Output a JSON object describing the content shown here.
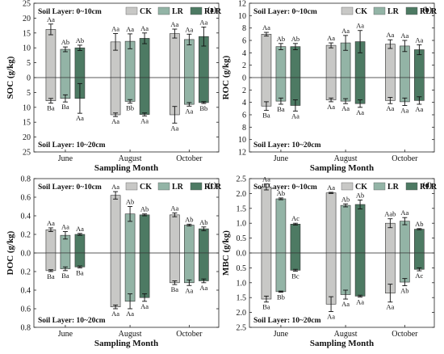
{
  "legend": {
    "items": [
      {
        "name": "CK",
        "color": "#c8c8c6"
      },
      {
        "name": "LR",
        "color": "#93b4a6"
      },
      {
        "name": "RLR",
        "color": "#4d7a63"
      }
    ]
  },
  "chart_data": [
    {
      "type": "bar",
      "panel_label": "(a)",
      "title": "",
      "ylabel": "SOC (g/kg)",
      "xlabel": "Sampling Month",
      "top_layer_label": "Soil Layer: 0~10cm",
      "bottom_layer_label": "Soil Layer: 10~20cm",
      "categories": [
        "June",
        "August",
        "October"
      ],
      "ylim_top": 25,
      "ylim_bottom": 25,
      "yticks_top": [
        "25",
        "20",
        "15",
        "10",
        "5",
        "0"
      ],
      "yticks_bottom": [
        "5",
        "10",
        "15",
        "20",
        "25"
      ],
      "ytick_values_top": [
        25,
        20,
        15,
        10,
        5,
        0
      ],
      "ytick_values_bottom": [
        5,
        10,
        15,
        20,
        25
      ],
      "series": [
        {
          "name": "CK",
          "top": [
            16.2,
            12.0,
            14.8
          ],
          "top_err": [
            1.8,
            2.8,
            1.5
          ],
          "top_labels": [
            "Aa",
            "Aa",
            "Aa"
          ],
          "bottom": [
            7.8,
            12.5,
            12.5
          ],
          "bottom_err": [
            0.8,
            0.6,
            2.8
          ],
          "bottom_labels": [
            "Ba",
            "Aa",
            "Aa"
          ]
        },
        {
          "name": "LR",
          "top": [
            9.5,
            12.2,
            12.8
          ],
          "top_err": [
            0.8,
            2.5,
            1.8
          ],
          "top_labels": [
            "Ab",
            "Aa",
            "Aa"
          ],
          "bottom": [
            7.0,
            8.0,
            9.0
          ],
          "bottom_err": [
            1.2,
            0.6,
            0.6
          ],
          "bottom_labels": [
            "Ba",
            "Bb",
            "Aa"
          ]
        },
        {
          "name": "RLR",
          "top": [
            10.0,
            13.2,
            13.8
          ],
          "top_err": [
            0.9,
            1.8,
            3.2
          ],
          "top_labels": [
            "Ab",
            "Aa",
            "Aa"
          ],
          "bottom": [
            7.0,
            12.4,
            8.4
          ],
          "bottom_err": [
            5.0,
            0.5,
            0.3
          ],
          "bottom_labels": [
            "Aa",
            "Aa",
            "Bb"
          ]
        }
      ]
    },
    {
      "type": "bar",
      "panel_label": "(b)",
      "title": "",
      "ylabel": "ROC (g/kg)",
      "xlabel": "Sampling Month",
      "top_layer_label": "Soil Layer: 0~10cm",
      "bottom_layer_label": "Soil Layer: 10~20cm",
      "categories": [
        "June",
        "August",
        "October"
      ],
      "ylim_top": 12,
      "ylim_bottom": 12,
      "yticks_top": [
        "12",
        "10",
        "8",
        "6",
        "4",
        "2",
        "0"
      ],
      "yticks_bottom": [
        "2",
        "4",
        "6",
        "8",
        "10",
        "12"
      ],
      "ytick_values_top": [
        12,
        10,
        8,
        6,
        4,
        2,
        0
      ],
      "ytick_values_bottom": [
        2,
        4,
        6,
        8,
        10,
        12
      ],
      "series": [
        {
          "name": "CK",
          "top": [
            7.0,
            5.2,
            5.4
          ],
          "top_err": [
            0.3,
            0.4,
            0.7
          ],
          "top_labels": [
            "Aa",
            "Aa",
            "Aa"
          ],
          "bottom": [
            4.6,
            3.6,
            3.7
          ],
          "bottom_err": [
            0.7,
            0.3,
            0.5
          ],
          "bottom_labels": [
            "Ba",
            "Aa",
            "Aa"
          ]
        },
        {
          "name": "LR",
          "top": [
            5.0,
            5.6,
            5.1
          ],
          "top_err": [
            0.5,
            1.2,
            0.9
          ],
          "top_labels": [
            "Ab",
            "Aa",
            "Aa"
          ],
          "bottom": [
            3.8,
            3.8,
            3.9
          ],
          "bottom_err": [
            0.5,
            0.4,
            0.6
          ],
          "bottom_labels": [
            "Ba",
            "Aa",
            "Aa"
          ]
        },
        {
          "name": "RLR",
          "top": [
            5.0,
            5.8,
            4.5
          ],
          "top_err": [
            0.5,
            1.8,
            0.8
          ],
          "top_labels": [
            "Ab",
            "Aa",
            "Aa"
          ],
          "bottom": [
            4.5,
            4.2,
            3.7
          ],
          "bottom_err": [
            0.9,
            0.6,
            0.6
          ],
          "bottom_labels": [
            "Aa",
            "Aa",
            "Aa"
          ]
        }
      ]
    },
    {
      "type": "bar",
      "panel_label": "(c)",
      "title": "",
      "ylabel": "DOC (g/kg)",
      "xlabel": "Sampling Month",
      "top_layer_label": "Soil Layer: 0~10cm",
      "bottom_layer_label": "Soil Layer: 10~20cm",
      "categories": [
        "June",
        "August",
        "October"
      ],
      "ylim_top": 0.8,
      "ylim_bottom": 0.8,
      "yticks_top": [
        "0.8",
        "0.6",
        "0.4",
        "0.2",
        "0.0"
      ],
      "yticks_bottom": [
        "0.2",
        "0.4",
        "0.6",
        "0.8"
      ],
      "ytick_values_top": [
        0.8,
        0.6,
        0.4,
        0.2,
        0
      ],
      "ytick_values_bottom": [
        0.2,
        0.4,
        0.6,
        0.8
      ],
      "series": [
        {
          "name": "CK",
          "top": [
            0.25,
            0.62,
            0.41
          ],
          "top_err": [
            0.02,
            0.04,
            0.02
          ],
          "top_labels": [
            "Aa",
            "Aa",
            "Aa"
          ],
          "bottom": [
            0.19,
            0.58,
            0.32
          ],
          "bottom_err": [
            0.01,
            0.02,
            0.02
          ],
          "bottom_labels": [
            "Ba",
            "Aa",
            "Ba"
          ]
        },
        {
          "name": "LR",
          "top": [
            0.19,
            0.42,
            0.3
          ],
          "top_err": [
            0.04,
            0.08,
            0.01
          ],
          "top_labels": [
            "Aa",
            "Ab",
            "Ab"
          ],
          "bottom": [
            0.17,
            0.52,
            0.32
          ],
          "bottom_err": [
            0.02,
            0.08,
            0.03
          ],
          "bottom_labels": [
            "Ba",
            "Aa",
            "Aa"
          ]
        },
        {
          "name": "RLR",
          "top": [
            0.2,
            0.41,
            0.26
          ],
          "top_err": [
            0.01,
            0.01,
            0.02
          ],
          "top_labels": [
            "Aa",
            "Ab",
            "Ab"
          ],
          "bottom": [
            0.15,
            0.48,
            0.3
          ],
          "bottom_err": [
            0.01,
            0.04,
            0.02
          ],
          "bottom_labels": [
            "Ba",
            "Aa",
            "Aa"
          ]
        }
      ]
    },
    {
      "type": "bar",
      "panel_label": "(d)",
      "title": "",
      "ylabel": "MBC (g/kg)",
      "xlabel": "Sampling Month",
      "top_layer_label": "Soil Layer: 0~10cm",
      "bottom_layer_label": "Soil Layer: 10~20cm",
      "categories": [
        "June",
        "August",
        "October"
      ],
      "ylim_top": 2.5,
      "ylim_bottom": 2.5,
      "yticks_top": [
        "2.5",
        "2.0",
        "1.5",
        "1.0",
        "0.5",
        "0.0"
      ],
      "yticks_bottom": [
        "0.5",
        "1.0",
        "1.5",
        "2.0",
        "2.5"
      ],
      "ytick_values_top": [
        2.5,
        2.0,
        1.5,
        1.0,
        0.5,
        0
      ],
      "ytick_values_bottom": [
        0.5,
        1.0,
        1.5,
        2.0,
        2.5
      ],
      "series": [
        {
          "name": "CK",
          "top": [
            2.22,
            2.02,
            1.0
          ],
          "top_err": [
            0.1,
            0.02,
            0.15
          ],
          "top_labels": [
            "Aa",
            "Aa",
            "Aab"
          ],
          "bottom": [
            1.55,
            1.72,
            1.35
          ],
          "bottom_err": [
            0.1,
            0.25,
            0.3
          ],
          "bottom_labels": [
            "Ba",
            "Aa",
            "Aa"
          ]
        },
        {
          "name": "LR",
          "top": [
            1.82,
            1.6,
            1.07
          ],
          "top_err": [
            0.03,
            0.05,
            0.12
          ],
          "top_labels": [
            "Ab",
            "Ab",
            "Aa"
          ],
          "bottom": [
            1.3,
            1.4,
            0.98
          ],
          "bottom_err": [
            0.02,
            0.15,
            0.12
          ],
          "bottom_labels": [
            "Bb",
            "Aa",
            "Ab"
          ]
        },
        {
          "name": "RLR",
          "top": [
            0.97,
            1.63,
            0.8
          ],
          "top_err": [
            0.03,
            0.15,
            0.02
          ],
          "top_labels": [
            "Ac",
            "Ab",
            "Ab"
          ],
          "bottom": [
            0.58,
            1.45,
            0.55
          ],
          "bottom_err": [
            0.03,
            0.03,
            0.05
          ],
          "bottom_labels": [
            "Bc",
            "Aa",
            "Ac"
          ]
        }
      ]
    }
  ]
}
